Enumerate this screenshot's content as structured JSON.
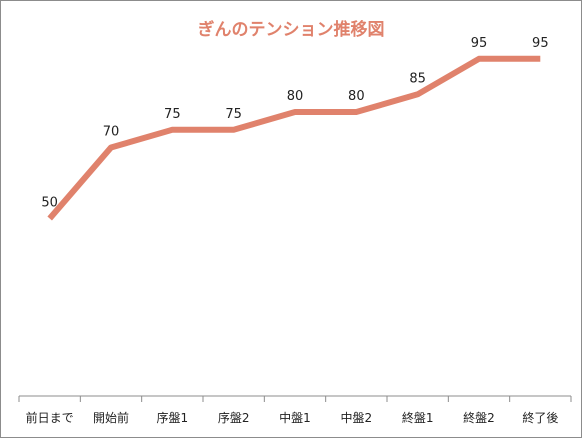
{
  "chart_data": {
    "type": "line",
    "title": "ぎんのテンション推移図",
    "categories": [
      "前日まで",
      "開始前",
      "序盤1",
      "序盤2",
      "中盤1",
      "中盤2",
      "終盤1",
      "終盤2",
      "終了後"
    ],
    "series": [
      {
        "values": [
          50,
          70,
          75,
          75,
          80,
          80,
          85,
          95,
          95
        ],
        "color": "#e0826c"
      }
    ],
    "data_labels": true,
    "ylim": [
      0,
      100
    ],
    "grid": false,
    "legend": "none"
  }
}
